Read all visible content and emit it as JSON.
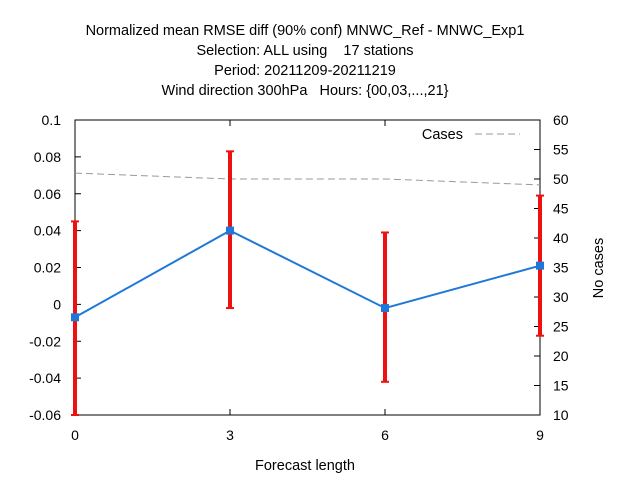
{
  "chart_data": {
    "type": "line",
    "title_lines": [
      "Normalized mean RMSE diff (90% conf) MNWC_Ref - MNWC_Exp1",
      "Selection: ALL using    17 stations",
      "Period: 20211209-20211219",
      "Wind direction 300hPa   Hours: {00,03,...,21}"
    ],
    "xlabel": "Forecast length",
    "ylabel_right": "No cases",
    "x_ticks": [
      "0",
      "3",
      "6",
      "9"
    ],
    "xlim": [
      0,
      9
    ],
    "ylim": [
      -0.06,
      0.1
    ],
    "y_ticks": [
      "-0.06",
      "-0.04",
      "-0.02",
      "0",
      "0.02",
      "0.04",
      "0.06",
      "0.08",
      "0.1"
    ],
    "y2lim": [
      10,
      60
    ],
    "y2_ticks": [
      "10",
      "15",
      "20",
      "25",
      "30",
      "35",
      "40",
      "45",
      "50",
      "55",
      "60"
    ],
    "legend": {
      "position": "top-right",
      "label": "Cases"
    },
    "series": [
      {
        "kind": "mean_with_error",
        "color": "#1f78d8",
        "error_color": "#ee1111",
        "x": [
          0,
          3,
          6,
          9
        ],
        "y": [
          -0.007,
          0.04,
          -0.002,
          0.021
        ],
        "err_low": [
          -0.06,
          -0.002,
          -0.042,
          -0.017
        ],
        "err_high": [
          0.045,
          0.083,
          0.039,
          0.059
        ]
      },
      {
        "name": "Cases",
        "kind": "cases",
        "axis": "right",
        "color": "#999999",
        "x": [
          0,
          3,
          6,
          9
        ],
        "y": [
          51,
          50,
          50,
          49
        ]
      }
    ],
    "grid": false
  }
}
